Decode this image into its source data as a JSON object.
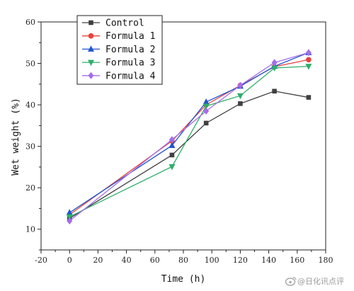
{
  "chart_data": {
    "type": "line",
    "xlabel": "Time (h)",
    "ylabel": "Wet weight (%)",
    "xlim": [
      -20,
      180
    ],
    "ylim": [
      5,
      60
    ],
    "xticks": [
      -20,
      0,
      20,
      40,
      60,
      80,
      100,
      120,
      140,
      160,
      180
    ],
    "yticks": [
      10,
      20,
      30,
      40,
      50,
      60
    ],
    "x": [
      0,
      72,
      96,
      120,
      144,
      168
    ],
    "grid": false,
    "legend_position": "top-left",
    "series": [
      {
        "name": "Control",
        "color": "#404040",
        "marker": "square",
        "values": [
          12.6,
          27.9,
          35.6,
          40.3,
          43.3,
          41.8
        ]
      },
      {
        "name": "Formula 1",
        "color": "#e8423f",
        "marker": "circle",
        "values": [
          13.5,
          31.3,
          40.0,
          44.7,
          49.2,
          50.9
        ]
      },
      {
        "name": "Formula 2",
        "color": "#2255cc",
        "marker": "triangle-up",
        "values": [
          14.0,
          30.2,
          40.7,
          44.5,
          49.3,
          52.6
        ]
      },
      {
        "name": "Formula 3",
        "color": "#2eae6a",
        "marker": "triangle-down",
        "values": [
          13.0,
          25.1,
          39.7,
          42.2,
          48.9,
          49.3
        ]
      },
      {
        "name": "Formula 4",
        "color": "#a46de8",
        "marker": "diamond",
        "values": [
          12.0,
          31.6,
          38.5,
          44.7,
          50.2,
          52.6
        ]
      }
    ]
  },
  "watermark": {
    "text": "@日化讯点评",
    "icon": "weibo-logo-icon"
  }
}
